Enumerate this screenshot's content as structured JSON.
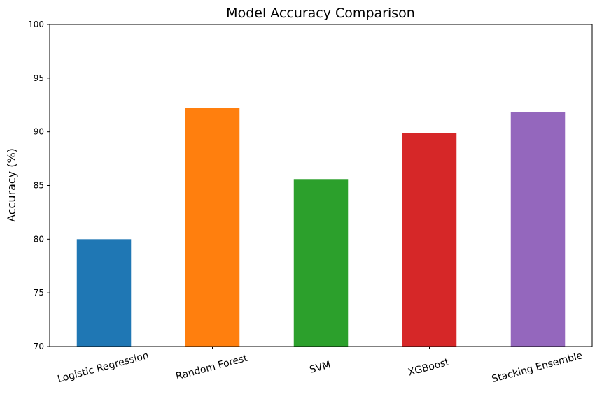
{
  "chart_data": {
    "type": "bar",
    "title": "Model Accuracy Comparison",
    "xlabel": "",
    "ylabel": "Accuracy (%)",
    "categories": [
      "Logistic Regression",
      "Random Forest",
      "SVM",
      "XGBoost",
      "Stacking Ensemble"
    ],
    "values": [
      80.0,
      92.2,
      85.6,
      89.9,
      91.8
    ],
    "colors": [
      "#1f77b4",
      "#ff7f0e",
      "#2ca02c",
      "#d62728",
      "#9467bd"
    ],
    "ylim": [
      70,
      100
    ],
    "yticks": [
      70,
      75,
      80,
      85,
      90,
      95,
      100
    ],
    "grid": false,
    "x_tick_rotation_deg": 15
  }
}
